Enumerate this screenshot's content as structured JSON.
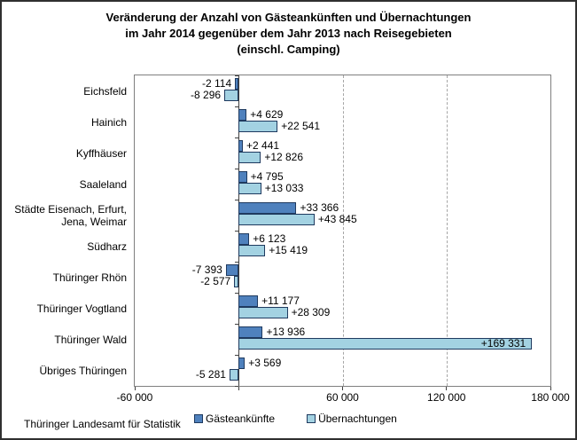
{
  "title": {
    "line1": "Veränderung der Anzahl von Gästeankünften und Übernachtungen",
    "line2": "im Jahr 2014 gegenüber dem Jahr 2013 nach Reisegebieten",
    "line3": "(einschl. Camping)"
  },
  "source": "Thüringer Landesamt für Statistik",
  "colors": {
    "arrivals_fill": "#4f81bd",
    "overnights_fill": "#a3d2e2",
    "bar_border": "#1f3a5f",
    "plot_border": "#7f7f7f",
    "gridline": "#a6a6a6",
    "axis": "#404040"
  },
  "legend": {
    "items": [
      {
        "key": "gaesteankuenfte",
        "label": "Gästeankünfte",
        "color": "#4f81bd"
      },
      {
        "key": "uebernachtungen",
        "label": "Übernachtungen",
        "color": "#a3d2e2"
      }
    ]
  },
  "chart_data": {
    "type": "bar",
    "orientation": "horizontal",
    "title": "Veränderung der Anzahl von Gästeankünften und Übernachtungen im Jahr 2014 gegenüber dem Jahr 2013 nach Reisegebieten (einschl. Camping)",
    "categories": [
      "Eichsfeld",
      "Hainich",
      "Kyffhäuser",
      "Saaleland",
      "Städte Eisenach, Erfurt, Jena, Weimar",
      "Südharz",
      "Thüringer Rhön",
      "Thüringer Vogtland",
      "Thüringer Wald",
      "Übriges Thüringen"
    ],
    "categories_display": [
      "Eichsfeld",
      "Hainich",
      "Kyffhäuser",
      "Saaleland",
      "Städte Eisenach, Erfurt,\nJena, Weimar",
      "Südharz",
      "Thüringer Rhön",
      "Thüringer Vogtland",
      "Thüringer Wald",
      "Übriges Thüringen"
    ],
    "series": [
      {
        "name": "Gästeankünfte",
        "values": [
          -2114,
          4629,
          2441,
          4795,
          33366,
          6123,
          -7393,
          11177,
          13936,
          3569
        ],
        "labels": [
          "-2 114",
          "+4 629",
          "+2 441",
          "+4 795",
          "+33 366",
          "+6 123",
          "-7 393",
          "+11 177",
          "+13 936",
          "+3 569"
        ]
      },
      {
        "name": "Übernachtungen",
        "values": [
          -8296,
          22541,
          12826,
          13033,
          43845,
          15419,
          -2577,
          28309,
          169331,
          -5281
        ],
        "labels": [
          "-8 296",
          "+22 541",
          "+12 826",
          "+13 033",
          "+43 845",
          "+15 419",
          "-2 577",
          "+28 309",
          "+169 331",
          "-5 281"
        ]
      }
    ],
    "xlim": [
      -60000,
      180000
    ],
    "xticks": [
      {
        "value": -60000,
        "label": "-60 000"
      },
      {
        "value": 0,
        "label": ""
      },
      {
        "value": 60000,
        "label": "60 000"
      },
      {
        "value": 120000,
        "label": "120 000"
      },
      {
        "value": 180000,
        "label": "180 000"
      }
    ],
    "gridlines": [
      60000,
      120000
    ],
    "grid": "vertical-dashed",
    "legend_position": "bottom"
  }
}
